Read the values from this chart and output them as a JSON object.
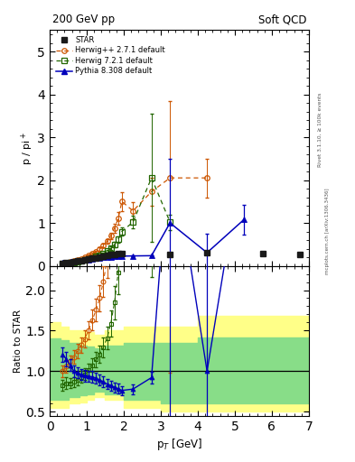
{
  "title_left": "200 GeV pp",
  "title_right": "Soft QCD",
  "ylabel_main": "p / pi+",
  "ylabel_ratio": "Ratio to STAR",
  "xlabel": "p_T [GeV]",
  "right_label1": "Rivet 3.1.10, ≥ 100k events",
  "right_label2": "mcplots.cern.ch [arXiv:1306.3436]",
  "ylim_main": [
    0.0,
    5.5
  ],
  "ylim_ratio": [
    0.45,
    2.3
  ],
  "xlim": [
    0.0,
    7.0
  ],
  "star_x": [
    0.35,
    0.45,
    0.55,
    0.65,
    0.75,
    0.85,
    0.95,
    1.05,
    1.15,
    1.25,
    1.35,
    1.45,
    1.55,
    1.65,
    1.75,
    1.85,
    1.95,
    3.25,
    4.25,
    5.75,
    6.75
  ],
  "star_y": [
    0.058,
    0.068,
    0.082,
    0.098,
    0.112,
    0.127,
    0.143,
    0.158,
    0.172,
    0.188,
    0.205,
    0.222,
    0.24,
    0.255,
    0.268,
    0.28,
    0.295,
    0.255,
    0.305,
    0.285,
    0.255
  ],
  "star_yerr": [
    0.004,
    0.004,
    0.005,
    0.006,
    0.007,
    0.008,
    0.009,
    0.01,
    0.011,
    0.012,
    0.013,
    0.014,
    0.015,
    0.016,
    0.017,
    0.018,
    0.019,
    0.025,
    0.04,
    0.035,
    0.035
  ],
  "herwigpp_x": [
    0.35,
    0.45,
    0.55,
    0.65,
    0.75,
    0.85,
    0.95,
    1.05,
    1.15,
    1.25,
    1.35,
    1.45,
    1.55,
    1.65,
    1.75,
    1.85,
    1.95,
    2.25,
    2.75,
    3.25,
    4.25
  ],
  "herwigpp_y": [
    0.058,
    0.072,
    0.092,
    0.115,
    0.14,
    0.168,
    0.2,
    0.238,
    0.28,
    0.33,
    0.39,
    0.468,
    0.57,
    0.7,
    0.88,
    1.1,
    1.5,
    1.28,
    1.73,
    2.05,
    2.05
  ],
  "herwigpp_yerr": [
    0.004,
    0.005,
    0.006,
    0.008,
    0.01,
    0.012,
    0.015,
    0.018,
    0.022,
    0.027,
    0.033,
    0.042,
    0.055,
    0.075,
    0.105,
    0.15,
    0.22,
    0.2,
    0.32,
    1.8,
    0.45
  ],
  "herwig721_x": [
    0.35,
    0.45,
    0.55,
    0.65,
    0.75,
    0.85,
    0.95,
    1.05,
    1.15,
    1.25,
    1.35,
    1.45,
    1.55,
    1.65,
    1.75,
    1.85,
    1.95,
    2.25,
    2.75,
    3.25
  ],
  "herwig721_y": [
    0.048,
    0.058,
    0.07,
    0.085,
    0.1,
    0.118,
    0.138,
    0.16,
    0.185,
    0.215,
    0.248,
    0.288,
    0.338,
    0.405,
    0.495,
    0.62,
    0.8,
    1.02,
    2.05,
    1.02
  ],
  "herwig721_yerr": [
    0.004,
    0.005,
    0.005,
    0.006,
    0.007,
    0.009,
    0.01,
    0.012,
    0.015,
    0.018,
    0.022,
    0.027,
    0.033,
    0.042,
    0.055,
    0.075,
    0.1,
    0.14,
    1.5,
    0.18
  ],
  "pythia_x": [
    0.35,
    0.45,
    0.55,
    0.65,
    0.75,
    0.85,
    0.95,
    1.05,
    1.15,
    1.25,
    1.35,
    1.45,
    1.55,
    1.65,
    1.75,
    1.85,
    1.95,
    2.25,
    2.75,
    3.25,
    4.25,
    5.25
  ],
  "pythia_y": [
    0.07,
    0.078,
    0.088,
    0.098,
    0.11,
    0.122,
    0.135,
    0.148,
    0.16,
    0.172,
    0.183,
    0.193,
    0.202,
    0.21,
    0.215,
    0.22,
    0.225,
    0.23,
    0.235,
    1.0,
    0.305,
    1.08
  ],
  "pythia_yerr": [
    0.005,
    0.006,
    0.006,
    0.007,
    0.008,
    0.009,
    0.01,
    0.011,
    0.012,
    0.013,
    0.014,
    0.014,
    0.015,
    0.016,
    0.016,
    0.017,
    0.017,
    0.018,
    0.018,
    1.5,
    0.45,
    0.35
  ],
  "band_yellow_x": [
    0.0,
    0.3,
    0.5,
    0.8,
    1.0,
    1.2,
    1.5,
    2.0,
    3.0,
    4.0,
    5.0,
    6.0,
    7.0
  ],
  "band_yellow_ylo": [
    0.55,
    0.55,
    0.6,
    0.62,
    0.65,
    0.68,
    0.65,
    0.55,
    0.5,
    0.5,
    0.5,
    0.5,
    0.5
  ],
  "band_yellow_yhi": [
    1.6,
    1.55,
    1.5,
    1.5,
    1.48,
    1.45,
    1.5,
    1.55,
    1.55,
    1.68,
    1.68,
    1.68,
    1.68
  ],
  "band_green_x": [
    0.0,
    0.3,
    0.5,
    0.8,
    1.0,
    1.2,
    1.5,
    2.0,
    3.0,
    4.0,
    5.0,
    6.0,
    7.0
  ],
  "band_green_ylo": [
    0.65,
    0.65,
    0.68,
    0.7,
    0.72,
    0.75,
    0.72,
    0.65,
    0.6,
    0.6,
    0.6,
    0.6,
    0.6
  ],
  "band_green_yhi": [
    1.4,
    1.38,
    1.35,
    1.32,
    1.3,
    1.28,
    1.32,
    1.35,
    1.35,
    1.42,
    1.42,
    1.42,
    1.42
  ],
  "color_star": "#1a1a1a",
  "color_herwigpp": "#cc5500",
  "color_herwig721": "#226600",
  "color_pythia": "#0000bb",
  "color_band_yellow": "#ffff88",
  "color_band_green": "#88dd88"
}
